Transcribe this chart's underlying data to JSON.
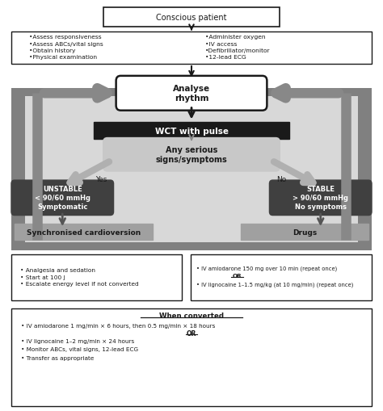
{
  "bg_color": "#ffffff",
  "colors": {
    "white_box": "#ffffff",
    "black_box": "#1a1a1a",
    "dark_gray_box": "#404040",
    "light_gray_box": "#c8c8c8",
    "medium_gray_box": "#909090",
    "outer_rect": "#808080",
    "arrow_dark": "#1a1a1a",
    "arrow_gray": "#aaaaaa",
    "text_white": "#ffffff",
    "text_black": "#000000",
    "text_dark": "#1a1a1a",
    "inner_bg": "#d8d8d8"
  },
  "left_assess": "•Assess responsiveness\n•Assess ABCs/vital signs\n•Obtain history\n•Physical examination",
  "right_assess": "•Administer oxygen\n•IV access\n•Defibrillator/monitor\n•12-lead ECG",
  "bottom_left": "• Analgesia and sedation\n• Start at 100 J\n• Escalate energy level if not converted",
  "bottom_right_1": "• IV amiodarone 150 mg over 10 min (repeat once)",
  "bottom_right_2": "• IV lignocaine 1–1.5 mg/kg (at 10 mg/min) (repeat once)",
  "wc_line1": "• IV amiodarone 1 mg/min × 6 hours, then 0.5 mg/min × 18 hours",
  "wc_line2": "• IV lignocaine 1–2 mg/min × 24 hours",
  "wc_line3": "• Monitor ABCs, vital signs, 12-lead ECG",
  "wc_line4": "• Transfer as appropriate"
}
